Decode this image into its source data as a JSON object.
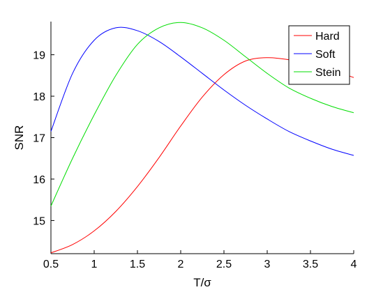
{
  "chart_data": {
    "type": "line",
    "xlabel": "T/σ",
    "ylabel": "SNR",
    "xlim": [
      0.5,
      4
    ],
    "ylim": [
      14.2,
      19.8
    ],
    "xticks": [
      0.5,
      1,
      1.5,
      2,
      2.5,
      3,
      3.5,
      4
    ],
    "xtick_labels": [
      "0.5",
      "1",
      "1.5",
      "2",
      "2.5",
      "3",
      "3.5",
      "4"
    ],
    "yticks": [
      15,
      16,
      17,
      18,
      19
    ],
    "ytick_labels": [
      "15",
      "16",
      "17",
      "18",
      "19"
    ],
    "grid": false,
    "legend_position": "top-right",
    "x": [
      0.5,
      0.75,
      1.0,
      1.25,
      1.5,
      1.75,
      2.0,
      2.25,
      2.5,
      2.75,
      3.0,
      3.25,
      3.5,
      3.75,
      4.0
    ],
    "series": [
      {
        "name": "Hard",
        "color": "#ff0000",
        "values": [
          14.22,
          14.42,
          14.75,
          15.22,
          15.82,
          16.52,
          17.28,
          17.98,
          18.52,
          18.85,
          18.93,
          18.88,
          18.77,
          18.63,
          18.45
        ]
      },
      {
        "name": "Soft",
        "color": "#0000ff",
        "values": [
          17.15,
          18.55,
          19.35,
          19.65,
          19.58,
          19.32,
          18.95,
          18.55,
          18.15,
          17.78,
          17.45,
          17.15,
          16.92,
          16.72,
          16.57
        ]
      },
      {
        "name": "Stein",
        "color": "#00dd00",
        "values": [
          15.35,
          16.5,
          17.55,
          18.5,
          19.25,
          19.65,
          19.78,
          19.65,
          19.35,
          18.95,
          18.55,
          18.2,
          17.95,
          17.75,
          17.6
        ]
      }
    ]
  }
}
